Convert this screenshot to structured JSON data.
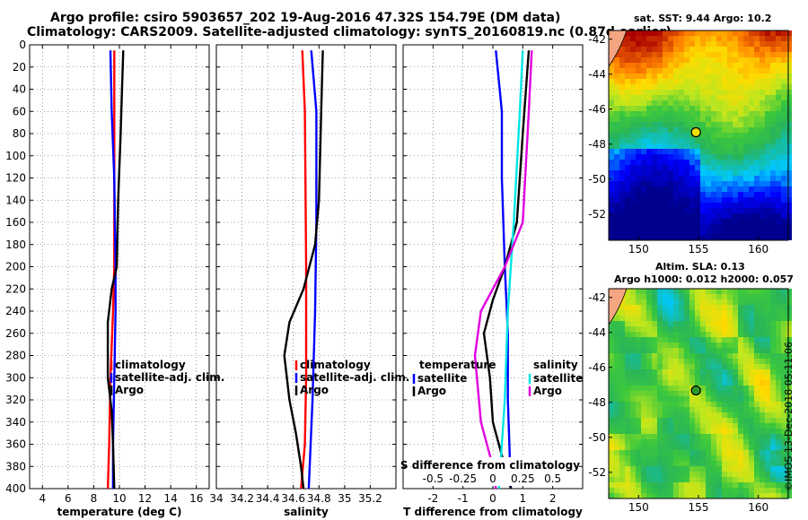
{
  "header": {
    "title_line1": "Argo profile: csiro 5903657_202 19-Aug-2016 47.32S 154.79E (DM data)",
    "title_line2": "Climatology: CARS2009. Satellite-adjusted climatology: synTS_20160819.nc (0.87d earlier)"
  },
  "credit": "©IMOS 13-Dec-2018 05:11:06",
  "colors": {
    "clim": "#ff0000",
    "sat": "#0000ff",
    "argo": "#000000",
    "sat_s": "#00e5e5",
    "argo_s": "#e000e0"
  },
  "chart_data": [
    {
      "type": "line",
      "id": "temperature",
      "xlabel": "temperature (deg C)",
      "xlim": [
        3,
        17
      ],
      "xticks": [
        "4",
        "6",
        "8",
        "10",
        "12",
        "14",
        "16"
      ],
      "xtick_values": [
        4,
        6,
        8,
        10,
        12,
        14,
        16
      ],
      "ylim": [
        400,
        0
      ],
      "yticks": [
        "0",
        "20",
        "40",
        "60",
        "80",
        "100",
        "120",
        "140",
        "160",
        "180",
        "200",
        "220",
        "240",
        "260",
        "280",
        "300",
        "320",
        "340",
        "360",
        "380",
        "400"
      ],
      "ytick_values": [
        0,
        20,
        40,
        60,
        80,
        100,
        120,
        140,
        160,
        180,
        200,
        220,
        240,
        260,
        280,
        300,
        320,
        340,
        360,
        380,
        400
      ],
      "legend": [
        "climatology",
        "satellite-adj. clim.",
        "Argo"
      ],
      "series": [
        {
          "name": "climatology",
          "color": "#ff0000",
          "points": [
            [
              9.6,
              5
            ],
            [
              9.6,
              60
            ],
            [
              9.6,
              120
            ],
            [
              9.6,
              200
            ],
            [
              9.5,
              240
            ],
            [
              9.3,
              300
            ],
            [
              9.2,
              360
            ],
            [
              9.1,
              400
            ]
          ]
        },
        {
          "name": "satellite-adj. clim.",
          "color": "#0000ff",
          "points": [
            [
              9.3,
              5
            ],
            [
              9.4,
              60
            ],
            [
              9.6,
              120
            ],
            [
              9.7,
              200
            ],
            [
              9.7,
              240
            ],
            [
              9.6,
              300
            ],
            [
              9.5,
              360
            ],
            [
              9.5,
              400
            ]
          ]
        },
        {
          "name": "Argo",
          "color": "#000000",
          "points": [
            [
              10.3,
              5
            ],
            [
              10.2,
              40
            ],
            [
              10.1,
              80
            ],
            [
              9.9,
              140
            ],
            [
              9.8,
              200
            ],
            [
              9.4,
              220
            ],
            [
              9.1,
              250
            ],
            [
              9.1,
              300
            ],
            [
              9.4,
              330
            ],
            [
              9.5,
              360
            ],
            [
              9.6,
              400
            ]
          ]
        }
      ]
    },
    {
      "type": "line",
      "id": "salinity",
      "xlabel": "salinity",
      "xlim": [
        34.0,
        35.4
      ],
      "xticks": [
        "34",
        "34.2",
        "34.4",
        "34.6",
        "34.8",
        "35",
        "35.2"
      ],
      "xtick_values": [
        34.0,
        34.2,
        34.4,
        34.6,
        34.8,
        35.0,
        35.2
      ],
      "ylim": [
        400,
        0
      ],
      "legend": [
        "climatology",
        "satellite-adj. clim.",
        "Argo"
      ],
      "series": [
        {
          "name": "climatology",
          "color": "#ff0000",
          "points": [
            [
              34.67,
              5
            ],
            [
              34.69,
              60
            ],
            [
              34.7,
              200
            ],
            [
              34.7,
              300
            ],
            [
              34.69,
              360
            ],
            [
              34.66,
              400
            ]
          ]
        },
        {
          "name": "satellite-adj. clim.",
          "color": "#0000ff",
          "points": [
            [
              34.74,
              5
            ],
            [
              34.78,
              60
            ],
            [
              34.78,
              160
            ],
            [
              34.77,
              240
            ],
            [
              34.75,
              320
            ],
            [
              34.72,
              400
            ]
          ]
        },
        {
          "name": "Argo",
          "color": "#000000",
          "points": [
            [
              34.83,
              5
            ],
            [
              34.82,
              50
            ],
            [
              34.8,
              140
            ],
            [
              34.77,
              180
            ],
            [
              34.68,
              220
            ],
            [
              34.57,
              250
            ],
            [
              34.53,
              280
            ],
            [
              34.57,
              320
            ],
            [
              34.62,
              350
            ],
            [
              34.66,
              380
            ],
            [
              34.68,
              400
            ]
          ]
        }
      ]
    },
    {
      "type": "line",
      "id": "difference",
      "xlabel": "T difference from climatology",
      "xlabel_top": "S difference from climatology",
      "xlim": [
        -3,
        3
      ],
      "xticks": [
        "-2",
        "-1",
        "0",
        "1",
        "2"
      ],
      "xtick_values": [
        -2,
        -1,
        0,
        1,
        2
      ],
      "sticks": [
        "-0.5",
        "-0.25",
        "0",
        "0.25",
        "0.5"
      ],
      "stick_values": [
        -2,
        -1,
        0,
        1,
        2
      ],
      "ylim": [
        400,
        0
      ],
      "legend_temperature_label": "temperature",
      "legend_salinity_label": "salinity",
      "legend": [
        "satellite",
        "Argo",
        "satellite",
        "Argo"
      ],
      "series": [
        {
          "name": "satellite (T)",
          "color": "#0000ff",
          "points": [
            [
              0.1,
              5
            ],
            [
              0.3,
              60
            ],
            [
              0.3,
              120
            ],
            [
              0.4,
              200
            ],
            [
              0.5,
              260
            ],
            [
              0.5,
              320
            ],
            [
              0.6,
              400
            ]
          ]
        },
        {
          "name": "Argo (T)",
          "color": "#000000",
          "points": [
            [
              1.2,
              5
            ],
            [
              1.0,
              80
            ],
            [
              0.8,
              160
            ],
            [
              0.4,
              200
            ],
            [
              0.0,
              230
            ],
            [
              -0.3,
              260
            ],
            [
              -0.1,
              300
            ],
            [
              0.0,
              340
            ],
            [
              0.3,
              370
            ],
            [
              0.6,
              400
            ]
          ]
        },
        {
          "name": "satellite (S)",
          "color": "#00e5e5",
          "points": [
            [
              1.0,
              5
            ],
            [
              0.9,
              60
            ],
            [
              0.7,
              160
            ],
            [
              0.5,
              240
            ],
            [
              0.4,
              320
            ],
            [
              0.2,
              400
            ]
          ]
        },
        {
          "name": "Argo (S)",
          "color": "#e000e0",
          "points": [
            [
              1.3,
              5
            ],
            [
              1.2,
              60
            ],
            [
              1.0,
              160
            ],
            [
              0.4,
              200
            ],
            [
              -0.4,
              240
            ],
            [
              -0.6,
              280
            ],
            [
              -0.4,
              340
            ],
            [
              0.0,
              380
            ],
            [
              0.1,
              400
            ]
          ]
        }
      ]
    },
    {
      "type": "heatmap",
      "id": "sst_map",
      "title": "sat. SST: 9.44 Argo: 10.2",
      "xlim": [
        147.5,
        162.5
      ],
      "ylim": [
        -53.5,
        -41.5
      ],
      "xticks": [
        "150",
        "155",
        "160"
      ],
      "xtick_values": [
        150,
        155,
        160
      ],
      "yticks": [
        "-42",
        "-44",
        "-46",
        "-48",
        "-50",
        "-52"
      ],
      "ytick_values": [
        -42,
        -44,
        -46,
        -48,
        -50,
        -52
      ],
      "argo_position": [
        154.79,
        -47.32
      ]
    },
    {
      "type": "heatmap",
      "id": "sla_map",
      "title_line1": "Altim. SLA: 0.13",
      "title_line2": "Argo h1000: 0.012 h2000: 0.057",
      "xlim": [
        147.5,
        162.5
      ],
      "ylim": [
        -53.5,
        -41.5
      ],
      "xticks": [
        "150",
        "155",
        "160"
      ],
      "xtick_values": [
        150,
        155,
        160
      ],
      "yticks": [
        "-42",
        "-44",
        "-46",
        "-48",
        "-50",
        "-52"
      ],
      "ytick_values": [
        -42,
        -44,
        -46,
        -48,
        -50,
        -52
      ],
      "argo_position": [
        154.79,
        -47.32
      ]
    }
  ]
}
